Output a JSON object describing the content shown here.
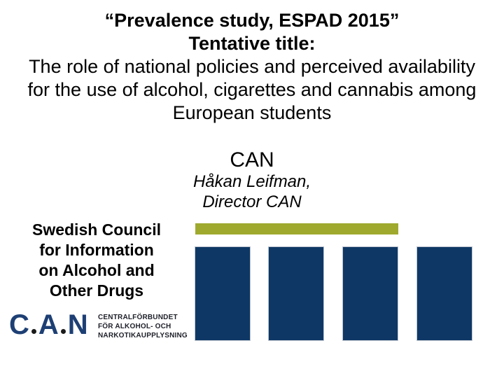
{
  "title": {
    "line1": "“Prevalence study, ESPAD 2015”",
    "line2": "Tentative title:",
    "line3": "The role of national policies and perceived availability",
    "line4": "for the use of alcohol, cigarettes and cannabis among",
    "line5": "European students"
  },
  "speaker": {
    "org_short": "CAN",
    "name": "Håkan Leifman,",
    "role": "Director CAN"
  },
  "org": {
    "name_lines": [
      "Swedish Council",
      "for Information",
      "on Alcohol and",
      "Other Drugs"
    ]
  },
  "logo": {
    "letters": [
      "C",
      "A",
      "N"
    ],
    "caption_lines": [
      "CENTRALFÖRBUNDET",
      "FÖR ALKOHOL- OCH",
      "NARKOTIKAUPPLYSNING"
    ]
  },
  "colors": {
    "pillar_navy": "#0E3765",
    "banner_olive": "#9EA92E",
    "logo_blue": "#1D3F74",
    "logo_dot_black": "#1A1A1A",
    "text_black": "#000000"
  }
}
